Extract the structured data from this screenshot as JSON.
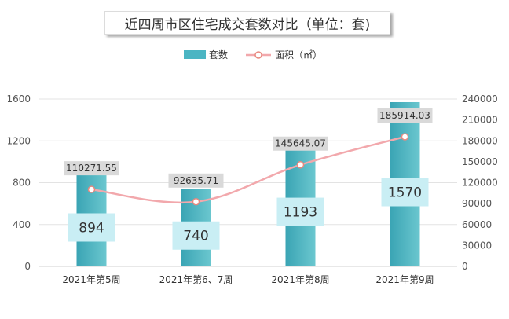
{
  "chart_data": {
    "type": "bar+line",
    "title": "近四周市区住宅成交套数对比（单位：套)",
    "categories": [
      "2021年第5周",
      "2021年第6、7周",
      "2021年第8周",
      "2021年第9周"
    ],
    "series": [
      {
        "name": "套数",
        "type": "bar",
        "axis": "left",
        "values": [
          894,
          740,
          1193,
          1570
        ],
        "labels": [
          "894",
          "740",
          "1193",
          "1570"
        ],
        "color": "#4bb5c3"
      },
      {
        "name": "面积（㎡）",
        "type": "line",
        "axis": "right",
        "values": [
          110271.55,
          92635.71,
          145645.07,
          185914.03
        ],
        "labels": [
          "110271.55",
          "92635.71",
          "145645.07",
          "185914.03"
        ],
        "color": "#f2a8ac"
      }
    ],
    "y_left": {
      "min": 0,
      "max": 1600,
      "ticks": [
        0,
        400,
        800,
        1200,
        1600
      ]
    },
    "y_right": {
      "min": 0,
      "max": 240000,
      "ticks": [
        0,
        30000,
        60000,
        90000,
        120000,
        150000,
        180000,
        210000,
        240000
      ]
    },
    "grid": true,
    "legend": "top-center"
  }
}
